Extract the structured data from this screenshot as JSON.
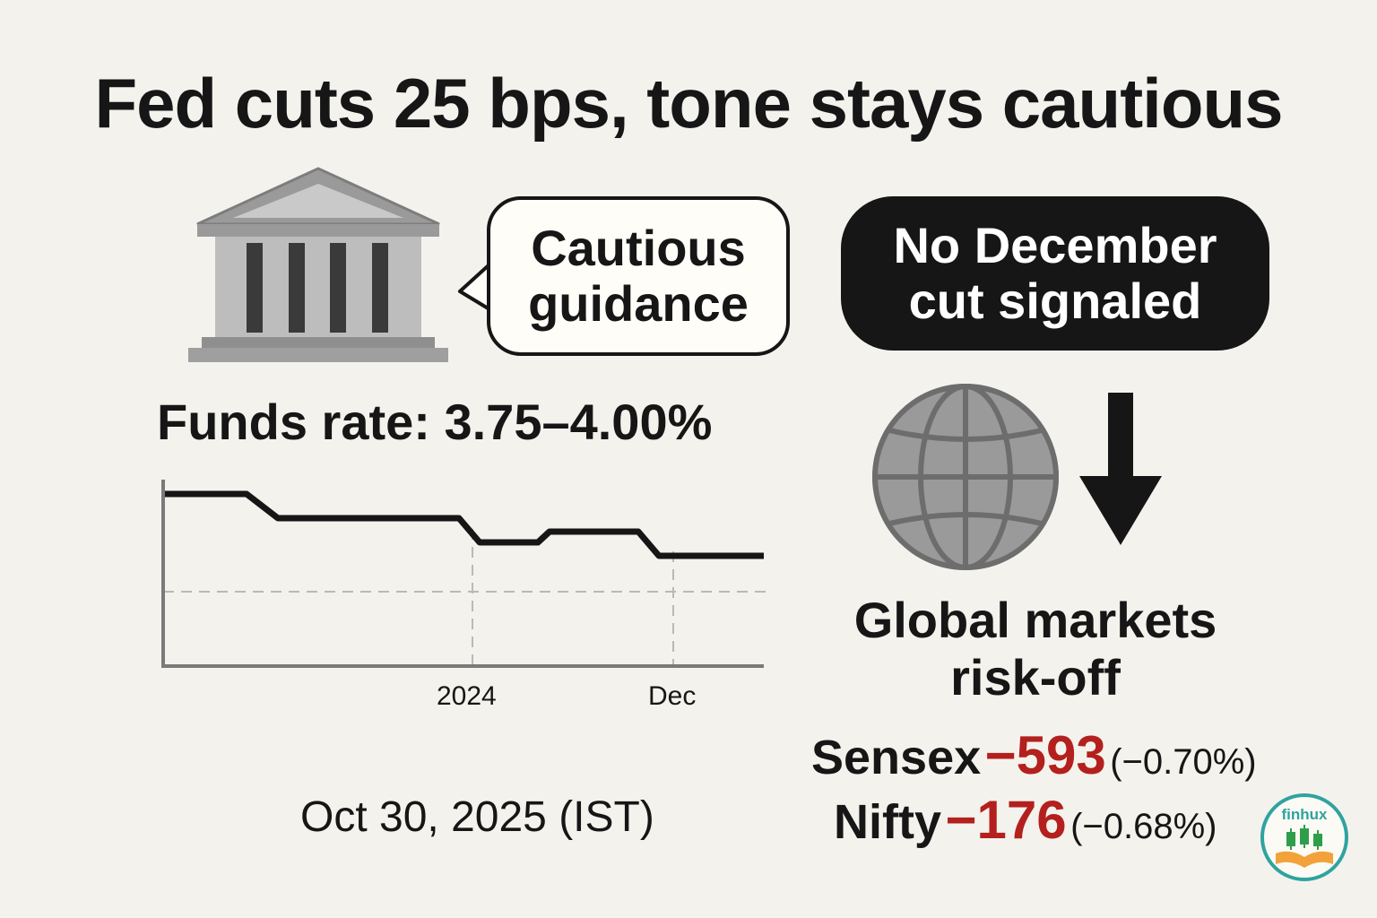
{
  "headline": "Fed cuts 25 bps, tone stays cautious",
  "guidance_bubble": {
    "line1": "Cautious",
    "line2": "guidance"
  },
  "signal_box": {
    "line1": "No December",
    "line2": "cut signaled"
  },
  "funds_rate": "Funds rate: 3.75–4.00%",
  "chart_ticks": {
    "left": "2024",
    "right": "Dec"
  },
  "date_text": "Oct 30, 2025 (IST)",
  "global": {
    "line1": "Global markets",
    "line2": "risk-off"
  },
  "markets": [
    {
      "name": "Sensex",
      "change": "−593",
      "pct": "(−0.70%)"
    },
    {
      "name": "Nifty",
      "change": "−176",
      "pct": "(−0.68%)"
    }
  ],
  "logo_text": "finhux",
  "colors": {
    "background": "#f4f2ed",
    "ink": "#161616",
    "negative": "#b3201d",
    "icon_gray": "#9a9a9a",
    "logo_ring": "#2fa3a0",
    "logo_candles": "#2e9e4a",
    "logo_book": "#f2a23a"
  },
  "icons": [
    "bank-building-icon",
    "globe-icon",
    "down-arrow-icon",
    "finhux-logo"
  ]
}
